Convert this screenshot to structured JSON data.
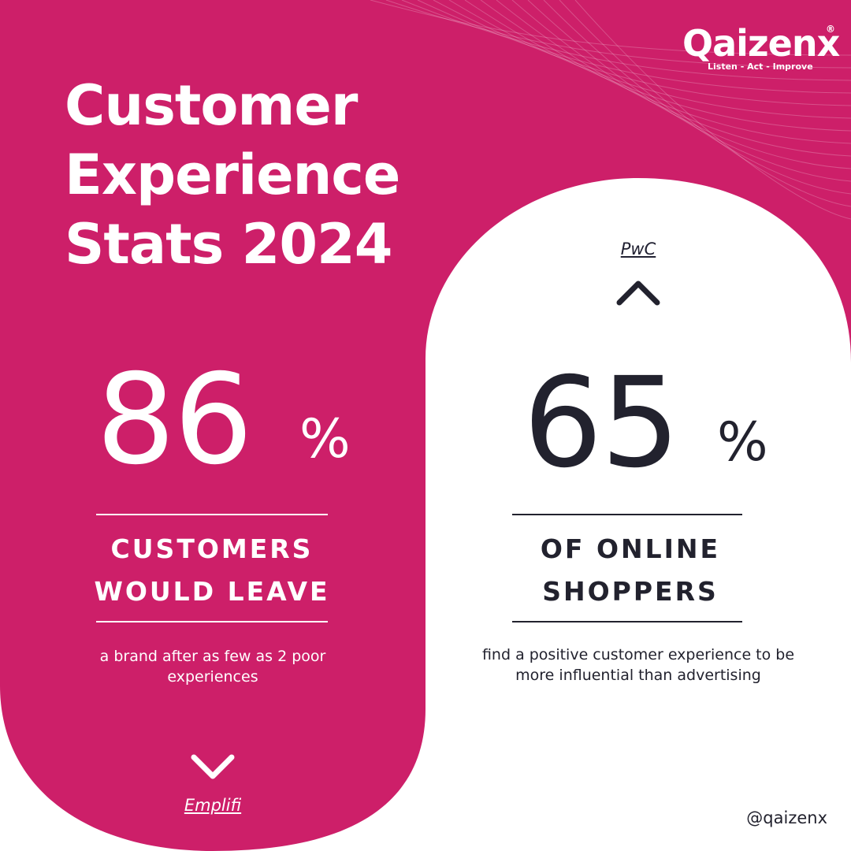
{
  "brand": {
    "name": "Qaizenx",
    "registered_mark": "®",
    "tagline": "Listen - Act - Improve"
  },
  "title": {
    "line1": "Customer",
    "line2": "Experience",
    "line3": "Stats 2024"
  },
  "stat_left": {
    "value": "86",
    "unit": "%",
    "label_line1": "CUSTOMERS",
    "label_line2": "WOULD LEAVE",
    "description": "a brand after as few as 2 poor experiences",
    "source": "Emplifi",
    "arrow_icon": "chevron-down-icon"
  },
  "stat_right": {
    "value": "65",
    "unit": "%",
    "label_line1": "OF ONLINE",
    "label_line2": "SHOPPERS",
    "description": "find a positive customer experience to be more influential than advertising",
    "source": "PwC",
    "arrow_icon": "chevron-up-icon"
  },
  "footer": {
    "handle": "@qaizenx"
  },
  "colors": {
    "brand_pink": "#CD1F69",
    "dark_text": "#22222E",
    "white": "#FFFFFF"
  }
}
